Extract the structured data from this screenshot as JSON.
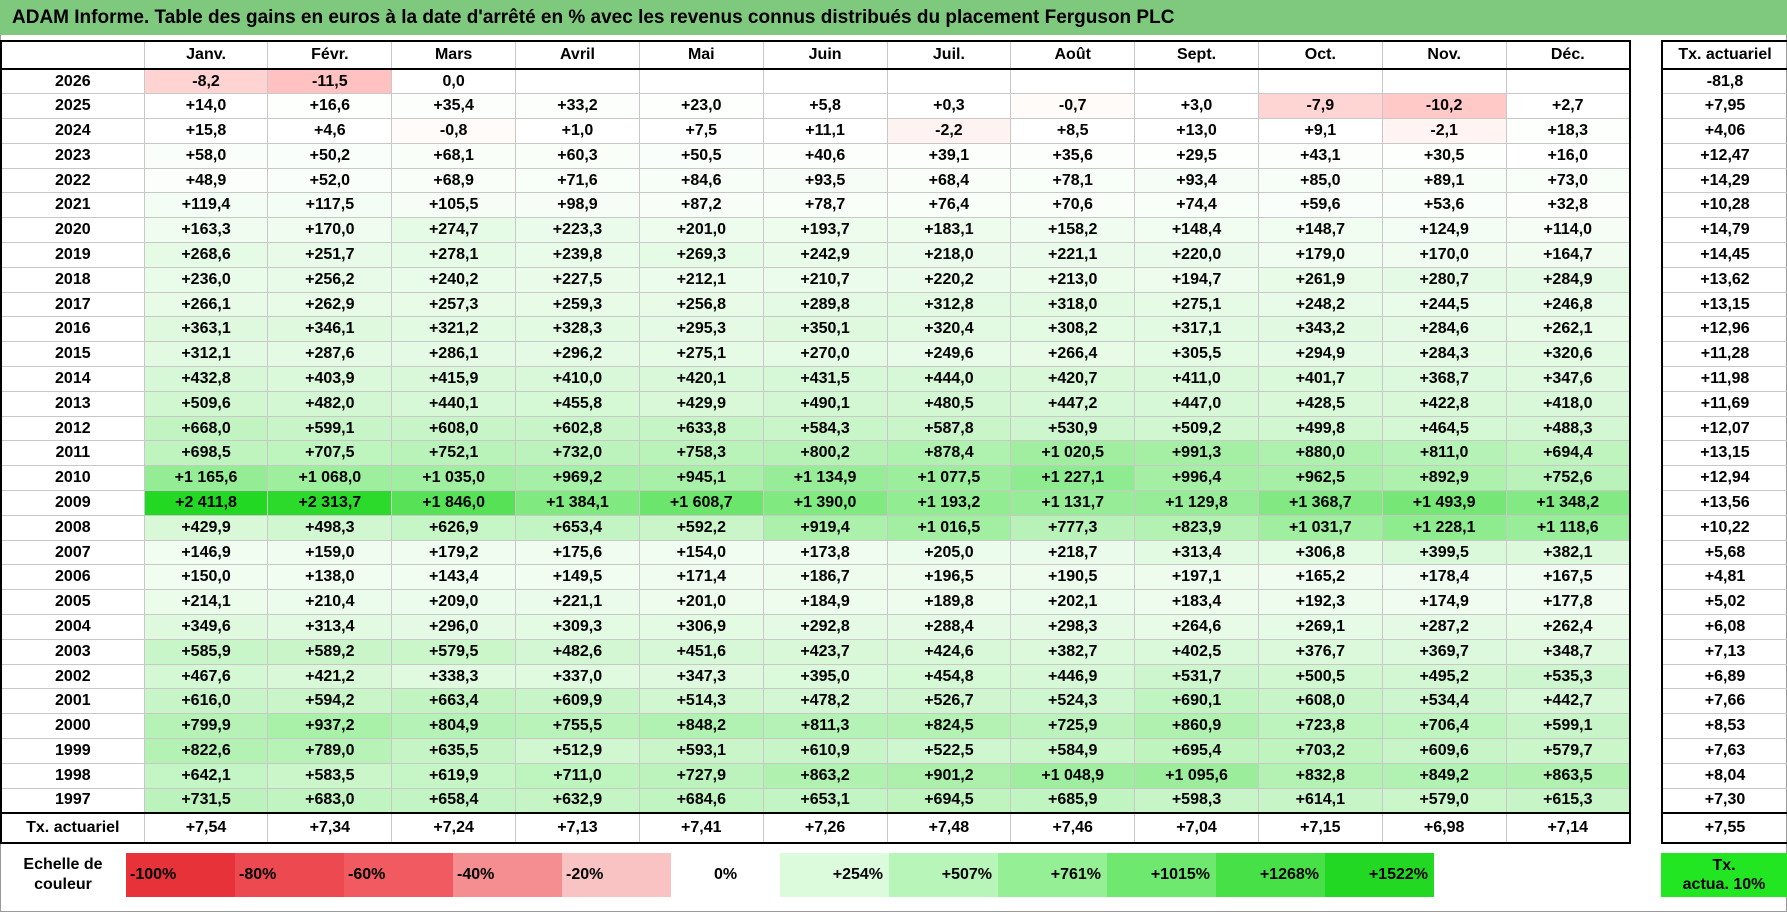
{
  "title": "ADAM Informe. Table des gains en euros à la date d'arrêté en % avec les revenus connus distribués du placement Ferguson PLC",
  "header": {
    "months": [
      "Janv.",
      "Févr.",
      "Mars",
      "Avril",
      "Mai",
      "Juin",
      "Juil.",
      "Août",
      "Sept.",
      "Oct.",
      "Nov.",
      "Déc."
    ],
    "side_label": "Tx. actuariel"
  },
  "rows": [
    {
      "year": "2026",
      "values": [
        "-8,2",
        "-11,5",
        "0,0",
        "",
        "",
        "",
        "",
        "",
        "",
        "",
        "",
        ""
      ],
      "tx": "-81,8"
    },
    {
      "year": "2025",
      "values": [
        "+14,0",
        "+16,6",
        "+35,4",
        "+33,2",
        "+23,0",
        "+5,8",
        "+0,3",
        "-0,7",
        "+3,0",
        "-7,9",
        "-10,2",
        "+2,7"
      ],
      "tx": "+7,95"
    },
    {
      "year": "2024",
      "values": [
        "+15,8",
        "+4,6",
        "-0,8",
        "+1,0",
        "+7,5",
        "+11,1",
        "-2,2",
        "+8,5",
        "+13,0",
        "+9,1",
        "-2,1",
        "+18,3"
      ],
      "tx": "+4,06"
    },
    {
      "year": "2023",
      "values": [
        "+58,0",
        "+50,2",
        "+68,1",
        "+60,3",
        "+50,5",
        "+40,6",
        "+39,1",
        "+35,6",
        "+29,5",
        "+43,1",
        "+30,5",
        "+16,0"
      ],
      "tx": "+12,47"
    },
    {
      "year": "2022",
      "values": [
        "+48,9",
        "+52,0",
        "+68,9",
        "+71,6",
        "+84,6",
        "+93,5",
        "+68,4",
        "+78,1",
        "+93,4",
        "+85,0",
        "+89,1",
        "+73,0"
      ],
      "tx": "+14,29"
    },
    {
      "year": "2021",
      "values": [
        "+119,4",
        "+117,5",
        "+105,5",
        "+98,9",
        "+87,2",
        "+78,7",
        "+76,4",
        "+70,6",
        "+74,4",
        "+59,6",
        "+53,6",
        "+32,8"
      ],
      "tx": "+10,28"
    },
    {
      "year": "2020",
      "values": [
        "+163,3",
        "+170,0",
        "+274,7",
        "+223,3",
        "+201,0",
        "+193,7",
        "+183,1",
        "+158,2",
        "+148,4",
        "+148,7",
        "+124,9",
        "+114,0"
      ],
      "tx": "+14,79"
    },
    {
      "year": "2019",
      "values": [
        "+268,6",
        "+251,7",
        "+278,1",
        "+239,8",
        "+269,3",
        "+242,9",
        "+218,0",
        "+221,1",
        "+220,0",
        "+179,0",
        "+170,0",
        "+164,7"
      ],
      "tx": "+14,45"
    },
    {
      "year": "2018",
      "values": [
        "+236,0",
        "+256,2",
        "+240,2",
        "+227,5",
        "+212,1",
        "+210,7",
        "+220,2",
        "+213,0",
        "+194,7",
        "+261,9",
        "+280,7",
        "+284,9"
      ],
      "tx": "+13,62"
    },
    {
      "year": "2017",
      "values": [
        "+266,1",
        "+262,9",
        "+257,3",
        "+259,3",
        "+256,8",
        "+289,8",
        "+312,8",
        "+318,0",
        "+275,1",
        "+248,2",
        "+244,5",
        "+246,8"
      ],
      "tx": "+13,15"
    },
    {
      "year": "2016",
      "values": [
        "+363,1",
        "+346,1",
        "+321,2",
        "+328,3",
        "+295,3",
        "+350,1",
        "+320,4",
        "+308,2",
        "+317,1",
        "+343,2",
        "+284,6",
        "+262,1"
      ],
      "tx": "+12,96"
    },
    {
      "year": "2015",
      "values": [
        "+312,1",
        "+287,6",
        "+286,1",
        "+296,2",
        "+275,1",
        "+270,0",
        "+249,6",
        "+266,4",
        "+305,5",
        "+294,9",
        "+284,3",
        "+320,6"
      ],
      "tx": "+11,28"
    },
    {
      "year": "2014",
      "values": [
        "+432,8",
        "+403,9",
        "+415,9",
        "+410,0",
        "+420,1",
        "+431,5",
        "+444,0",
        "+420,7",
        "+411,0",
        "+401,7",
        "+368,7",
        "+347,6"
      ],
      "tx": "+11,98"
    },
    {
      "year": "2013",
      "values": [
        "+509,6",
        "+482,0",
        "+440,1",
        "+455,8",
        "+429,9",
        "+490,1",
        "+480,5",
        "+447,2",
        "+447,0",
        "+428,5",
        "+422,8",
        "+418,0"
      ],
      "tx": "+11,69"
    },
    {
      "year": "2012",
      "values": [
        "+668,0",
        "+599,1",
        "+608,0",
        "+602,8",
        "+633,8",
        "+584,3",
        "+587,8",
        "+530,9",
        "+509,2",
        "+499,8",
        "+464,5",
        "+488,3"
      ],
      "tx": "+12,07"
    },
    {
      "year": "2011",
      "values": [
        "+698,5",
        "+707,5",
        "+752,1",
        "+732,0",
        "+758,3",
        "+800,2",
        "+878,4",
        "+1 020,5",
        "+991,3",
        "+880,0",
        "+811,0",
        "+694,4"
      ],
      "tx": "+13,15"
    },
    {
      "year": "2010",
      "values": [
        "+1 165,6",
        "+1 068,0",
        "+1 035,0",
        "+969,2",
        "+945,1",
        "+1 134,9",
        "+1 077,5",
        "+1 227,1",
        "+996,4",
        "+962,5",
        "+892,9",
        "+752,6"
      ],
      "tx": "+12,94"
    },
    {
      "year": "2009",
      "values": [
        "+2 411,8",
        "+2 313,7",
        "+1 846,0",
        "+1 384,1",
        "+1 608,7",
        "+1 390,0",
        "+1 193,2",
        "+1 131,7",
        "+1 129,8",
        "+1 368,7",
        "+1 493,9",
        "+1 348,2"
      ],
      "tx": "+13,56"
    },
    {
      "year": "2008",
      "values": [
        "+429,9",
        "+498,3",
        "+626,9",
        "+653,4",
        "+592,2",
        "+919,4",
        "+1 016,5",
        "+777,3",
        "+823,9",
        "+1 031,7",
        "+1 228,1",
        "+1 118,6"
      ],
      "tx": "+10,22"
    },
    {
      "year": "2007",
      "values": [
        "+146,9",
        "+159,0",
        "+179,2",
        "+175,6",
        "+154,0",
        "+173,8",
        "+205,0",
        "+218,7",
        "+313,4",
        "+306,8",
        "+399,5",
        "+382,1"
      ],
      "tx": "+5,68"
    },
    {
      "year": "2006",
      "values": [
        "+150,0",
        "+138,0",
        "+143,4",
        "+149,5",
        "+171,4",
        "+186,7",
        "+196,5",
        "+190,5",
        "+197,1",
        "+165,2",
        "+178,4",
        "+167,5"
      ],
      "tx": "+4,81"
    },
    {
      "year": "2005",
      "values": [
        "+214,1",
        "+210,4",
        "+209,0",
        "+221,1",
        "+201,0",
        "+184,9",
        "+189,8",
        "+202,1",
        "+183,4",
        "+192,3",
        "+174,9",
        "+177,8"
      ],
      "tx": "+5,02"
    },
    {
      "year": "2004",
      "values": [
        "+349,6",
        "+313,4",
        "+296,0",
        "+309,3",
        "+306,9",
        "+292,8",
        "+288,4",
        "+298,3",
        "+264,6",
        "+269,1",
        "+287,2",
        "+262,4"
      ],
      "tx": "+6,08"
    },
    {
      "year": "2003",
      "values": [
        "+585,9",
        "+589,2",
        "+579,5",
        "+482,6",
        "+451,6",
        "+423,7",
        "+424,6",
        "+382,7",
        "+402,5",
        "+376,7",
        "+369,7",
        "+348,7"
      ],
      "tx": "+7,13"
    },
    {
      "year": "2002",
      "values": [
        "+467,6",
        "+421,2",
        "+338,3",
        "+337,0",
        "+347,3",
        "+395,0",
        "+454,8",
        "+446,9",
        "+531,7",
        "+500,5",
        "+495,2",
        "+535,3"
      ],
      "tx": "+6,89"
    },
    {
      "year": "2001",
      "values": [
        "+616,0",
        "+594,2",
        "+663,4",
        "+609,9",
        "+514,3",
        "+478,2",
        "+526,7",
        "+524,3",
        "+690,1",
        "+608,0",
        "+534,4",
        "+442,7"
      ],
      "tx": "+7,66"
    },
    {
      "year": "2000",
      "values": [
        "+799,9",
        "+937,2",
        "+804,9",
        "+755,5",
        "+848,2",
        "+811,3",
        "+824,5",
        "+725,9",
        "+860,9",
        "+723,8",
        "+706,4",
        "+599,1"
      ],
      "tx": "+8,53"
    },
    {
      "year": "1999",
      "values": [
        "+822,6",
        "+789,0",
        "+635,5",
        "+512,9",
        "+593,1",
        "+610,9",
        "+522,5",
        "+584,9",
        "+695,4",
        "+703,2",
        "+609,6",
        "+579,7"
      ],
      "tx": "+7,63"
    },
    {
      "year": "1998",
      "values": [
        "+642,1",
        "+583,5",
        "+619,9",
        "+711,0",
        "+727,9",
        "+863,2",
        "+901,2",
        "+1 048,9",
        "+1 095,6",
        "+832,8",
        "+849,2",
        "+863,5"
      ],
      "tx": "+8,04"
    },
    {
      "year": "1997",
      "values": [
        "+731,5",
        "+683,0",
        "+658,4",
        "+632,9",
        "+684,6",
        "+653,1",
        "+694,5",
        "+685,9",
        "+598,3",
        "+614,1",
        "+579,0",
        "+615,3"
      ],
      "tx": "+7,30"
    }
  ],
  "footer": {
    "label": "Tx. actuariel",
    "values": [
      "+7,54",
      "+7,34",
      "+7,24",
      "+7,13",
      "+7,41",
      "+7,26",
      "+7,48",
      "+7,46",
      "+7,04",
      "+7,15",
      "+6,98",
      "+7,14"
    ],
    "tx": "+7,55"
  },
  "legend": {
    "label_line1": "Echelle de",
    "label_line2": "couleur",
    "items": [
      {
        "text": "-100%",
        "color": "#e8323a"
      },
      {
        "text": "-80%",
        "color": "#ec4a50"
      },
      {
        "text": "-60%",
        "color": "#f05a60"
      },
      {
        "text": "-40%",
        "color": "#f48e90"
      },
      {
        "text": "-20%",
        "color": "#f9c3c4"
      },
      {
        "text": "0%",
        "color": "#ffffff"
      },
      {
        "text": "+254%",
        "color": "#dcfbdc"
      },
      {
        "text": "+507%",
        "color": "#b8f5b8"
      },
      {
        "text": "+761%",
        "color": "#95ef95"
      },
      {
        "text": "+1015%",
        "color": "#6ee86e"
      },
      {
        "text": "+1268%",
        "color": "#47e147"
      },
      {
        "text": "+1522%",
        "color": "#22d822"
      }
    ],
    "tx_line1": "Tx.",
    "tx_line2": "actua. 10%",
    "tx_color": "#22e622"
  }
}
